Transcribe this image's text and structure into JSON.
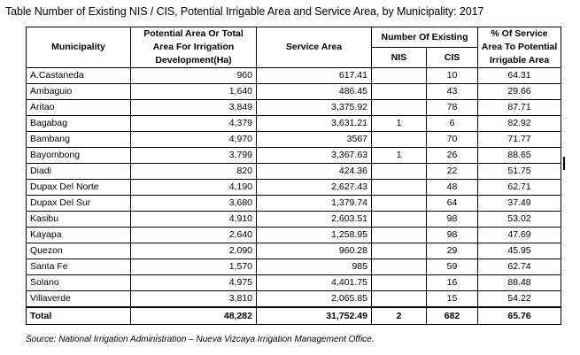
{
  "title": "Table Number of Existing NIS / CIS, Potential Irrigable Area and Service Area, by Municipality: 2017",
  "headers": {
    "municipality": "Municipality",
    "potential_area": "Potential Area Or Total Area For Irrigation Development(Ha)",
    "service_area": "Service Area",
    "number_existing": "Number Of Existing",
    "nis": "NIS",
    "cis": "CIS",
    "percent": "% Of Service Area To Potential Irrigable Area"
  },
  "rows": [
    {
      "municipality": "A.Castaneda",
      "potential": "960",
      "service": "617.41",
      "nis": "",
      "cis": "10",
      "percent": "64.31"
    },
    {
      "municipality": "Ambaguio",
      "potential": "1,640",
      "service": "486.45",
      "nis": "",
      "cis": "43",
      "percent": "29.66"
    },
    {
      "municipality": "Aritao",
      "potential": "3,849",
      "service": "3,375.92",
      "nis": "",
      "cis": "78",
      "percent": "87.71"
    },
    {
      "municipality": "Bagabag",
      "potential": "4,379",
      "service": "3,631.21",
      "nis": "1",
      "cis": "6",
      "percent": "82.92"
    },
    {
      "municipality": "Bambang",
      "potential": "4,970",
      "service": "3567",
      "nis": "",
      "cis": "70",
      "percent": "71.77"
    },
    {
      "municipality": "Bayombong",
      "potential": "3,799",
      "service": "3,367.63",
      "nis": "1",
      "cis": "26",
      "percent": "88.65"
    },
    {
      "municipality": "Diadi",
      "potential": "820",
      "service": "424.36",
      "nis": "",
      "cis": "22",
      "percent": "51.75"
    },
    {
      "municipality": "Dupax Del Norte",
      "potential": "4,190",
      "service": "2,627.43",
      "nis": "",
      "cis": "48",
      "percent": "62.71"
    },
    {
      "municipality": "Dupax Del Sur",
      "potential": "3,680",
      "service": "1,379.74",
      "nis": "",
      "cis": "64",
      "percent": "37.49"
    },
    {
      "municipality": "Kasibu",
      "potential": "4,910",
      "service": "2,603.51",
      "nis": "",
      "cis": "98",
      "percent": "53.02"
    },
    {
      "municipality": "Kayapa",
      "potential": "2,640",
      "service": "1,258.95",
      "nis": "",
      "cis": "98",
      "percent": "47.69"
    },
    {
      "municipality": "Quezon",
      "potential": "2,090",
      "service": "960.28",
      "nis": "",
      "cis": "29",
      "percent": "45.95"
    },
    {
      "municipality": "Santa Fe",
      "potential": "1,570",
      "service": "985",
      "nis": "",
      "cis": "59",
      "percent": "62.74"
    },
    {
      "municipality": "Solano",
      "potential": "4,975",
      "service": "4,401.75",
      "nis": "",
      "cis": "16",
      "percent": "88.48"
    },
    {
      "municipality": "Villaverde",
      "potential": "3,810",
      "service": "2,065.85",
      "nis": "",
      "cis": "15",
      "percent": "54.22"
    }
  ],
  "total": {
    "municipality": "Total",
    "potential": "48,282",
    "service": "31,752.49",
    "nis": "2",
    "cis": "682",
    "percent": "65.76"
  },
  "source": "Source: National Irrigation Administration – Nueva Vizcaya Irrigation Management Office."
}
